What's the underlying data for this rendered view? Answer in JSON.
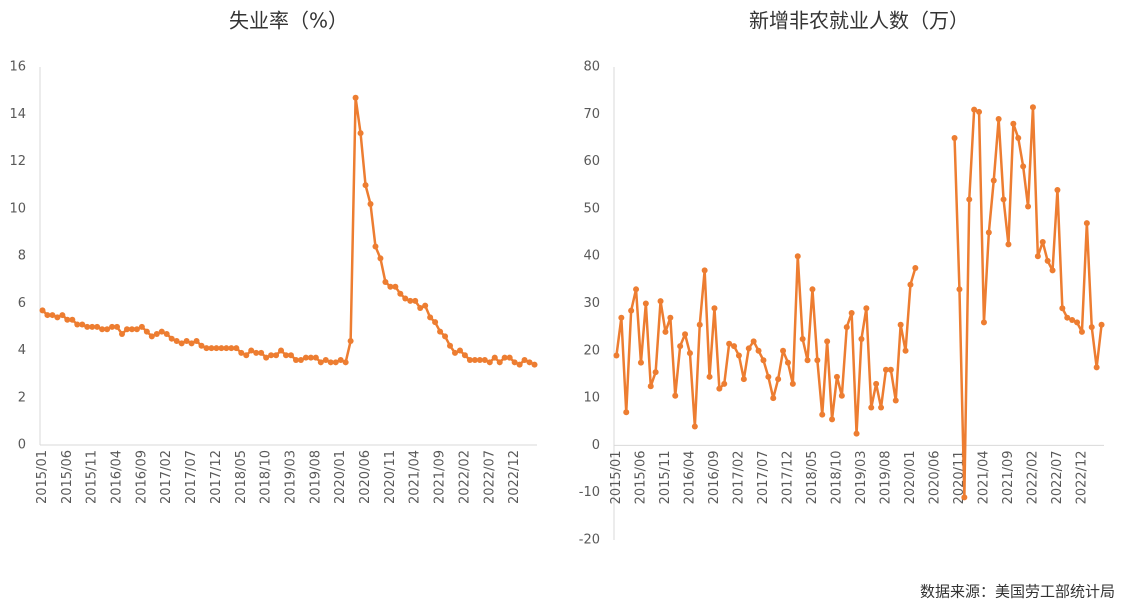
{
  "chart_data": [
    {
      "type": "line",
      "title": "失业率（%）",
      "color": "#ed7d31",
      "categories": [
        "2015/01",
        null,
        null,
        null,
        null,
        "2015/06",
        null,
        null,
        null,
        null,
        "2015/11",
        null,
        null,
        null,
        null,
        "2016/04",
        null,
        null,
        null,
        null,
        "2016/09",
        null,
        null,
        null,
        null,
        "2017/02",
        null,
        null,
        null,
        null,
        "2017/07",
        null,
        null,
        null,
        null,
        "2017/12",
        null,
        null,
        null,
        null,
        "2018/05",
        null,
        null,
        null,
        null,
        "2018/10",
        null,
        null,
        null,
        null,
        "2019/03",
        null,
        null,
        null,
        null,
        "2019/08",
        null,
        null,
        null,
        null,
        "2020/01",
        null,
        null,
        null,
        null,
        "2020/06",
        null,
        null,
        null,
        null,
        "2020/11",
        null,
        null,
        null,
        null,
        "2021/04",
        null,
        null,
        null,
        null,
        "2021/09",
        null,
        null,
        null,
        null,
        "2022/02",
        null,
        null,
        null,
        null,
        "2022/07",
        null,
        null,
        null,
        null,
        "2022/12",
        null,
        null,
        null,
        null
      ],
      "values": [
        5.7,
        5.5,
        5.5,
        5.4,
        5.5,
        5.3,
        5.3,
        5.1,
        5.1,
        5.0,
        5.0,
        5.0,
        4.9,
        4.9,
        5.0,
        5.0,
        4.7,
        4.9,
        4.9,
        4.9,
        5.0,
        4.8,
        4.6,
        4.7,
        4.8,
        4.7,
        4.5,
        4.4,
        4.3,
        4.4,
        4.3,
        4.4,
        4.2,
        4.1,
        4.1,
        4.1,
        4.1,
        4.1,
        4.1,
        4.1,
        3.9,
        3.8,
        4.0,
        3.9,
        3.9,
        3.7,
        3.8,
        3.8,
        4.0,
        3.8,
        3.8,
        3.6,
        3.6,
        3.7,
        3.7,
        3.7,
        3.5,
        3.6,
        3.5,
        3.5,
        3.6,
        3.5,
        4.4,
        14.7,
        13.2,
        11.0,
        10.2,
        8.4,
        7.9,
        6.9,
        6.7,
        6.7,
        6.4,
        6.2,
        6.1,
        6.1,
        5.8,
        5.9,
        5.4,
        5.2,
        4.8,
        4.6,
        4.2,
        3.9,
        4.0,
        3.8,
        3.6,
        3.6,
        3.6,
        3.6,
        3.5,
        3.7,
        3.5,
        3.7,
        3.7,
        3.5,
        3.4,
        3.6,
        3.5,
        3.4
      ],
      "ylim": [
        0,
        16
      ],
      "yticks": [
        0,
        2,
        4,
        6,
        8,
        10,
        12,
        14,
        16
      ]
    },
    {
      "type": "line",
      "title": "新增非农就业人数（万）",
      "color": "#ed7d31",
      "categories": [
        "2015/01",
        null,
        null,
        null,
        null,
        "2015/06",
        null,
        null,
        null,
        null,
        "2015/11",
        null,
        null,
        null,
        null,
        "2016/04",
        null,
        null,
        null,
        null,
        "2016/09",
        null,
        null,
        null,
        null,
        "2017/02",
        null,
        null,
        null,
        null,
        "2017/07",
        null,
        null,
        null,
        null,
        "2017/12",
        null,
        null,
        null,
        null,
        "2018/05",
        null,
        null,
        null,
        null,
        "2018/10",
        null,
        null,
        null,
        null,
        "2019/03",
        null,
        null,
        null,
        null,
        "2019/08",
        null,
        null,
        null,
        null,
        "2020/01",
        null,
        null,
        null,
        null,
        "2020/06",
        null,
        null,
        null,
        null,
        "2020/11",
        null,
        null,
        null,
        null,
        "2021/04",
        null,
        null,
        null,
        null,
        "2021/09",
        null,
        null,
        null,
        null,
        "2022/02",
        null,
        null,
        null,
        null,
        "2022/07",
        null,
        null,
        null,
        null,
        "2022/12",
        null,
        null,
        null,
        null
      ],
      "values": [
        19,
        27,
        7,
        28.5,
        33,
        17.5,
        30,
        12.5,
        15.5,
        30.5,
        24,
        27,
        10.5,
        21,
        23.5,
        19.5,
        4,
        25.5,
        37,
        14.5,
        29,
        12,
        13,
        21.5,
        21,
        19,
        14,
        20.5,
        22,
        20,
        18,
        14.5,
        10,
        14,
        20,
        17.5,
        13,
        40,
        22.5,
        18,
        33,
        18,
        6.5,
        22,
        5.5,
        14.5,
        10.5,
        25,
        28,
        2.5,
        22.5,
        29,
        8,
        13,
        8,
        16,
        16,
        9.5,
        25.5,
        20,
        34,
        37.5,
        null,
        null,
        null,
        null,
        null,
        null,
        null,
        65,
        33,
        -11,
        52,
        71,
        70.5,
        26,
        45,
        56,
        69,
        52,
        42.5,
        68,
        65,
        59,
        50.5,
        71.5,
        40,
        43,
        39,
        37,
        54,
        29,
        27,
        26.5,
        26,
        24,
        47,
        25,
        16.5,
        25.5
      ],
      "ylim": [
        -20,
        80
      ],
      "yticks": [
        -20,
        -10,
        0,
        10,
        20,
        30,
        40,
        50,
        60,
        70,
        80
      ]
    }
  ],
  "source": "数据来源：美国劳工部统计局"
}
